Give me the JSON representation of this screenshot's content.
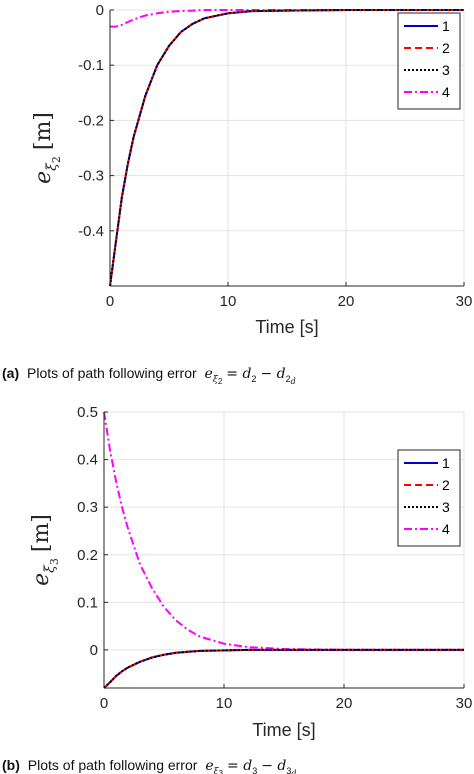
{
  "chart_data": [
    {
      "type": "line",
      "panel": "(a)",
      "caption_prefix": "Plots of path following error",
      "caption_math": "e_ξ2 = d_2 − d_2d",
      "ylabel": "e_ξ2 [m]",
      "xlabel": "Time [s]",
      "xlim": [
        0,
        30
      ],
      "ylim": [
        -0.5,
        0
      ],
      "xticks": [
        "0",
        "10",
        "20",
        "30"
      ],
      "yticks": [
        "0",
        "-0.1",
        "-0.2",
        "-0.3",
        "-0.4"
      ],
      "ytick_values": [
        0,
        -0.1,
        -0.2,
        -0.3,
        -0.4
      ],
      "grid": true,
      "legend_position": "top-right",
      "x": [
        0,
        0.5,
        1,
        1.5,
        2,
        3,
        4,
        5,
        6,
        7,
        8,
        10,
        12,
        15,
        20,
        25,
        30
      ],
      "series": [
        {
          "name": "1",
          "color": "#0000cc",
          "style": "solid",
          "values": [
            -0.5,
            -0.42,
            -0.34,
            -0.28,
            -0.23,
            -0.155,
            -0.1,
            -0.065,
            -0.04,
            -0.025,
            -0.015,
            -0.006,
            -0.002,
            -0.001,
            0,
            0,
            0
          ]
        },
        {
          "name": "2",
          "color": "#ff0000",
          "style": "dashed",
          "values": [
            -0.5,
            -0.42,
            -0.34,
            -0.28,
            -0.23,
            -0.155,
            -0.1,
            -0.065,
            -0.04,
            -0.025,
            -0.015,
            -0.006,
            -0.002,
            -0.001,
            0,
            0,
            0
          ]
        },
        {
          "name": "3",
          "color": "#000000",
          "style": "dotted",
          "values": [
            -0.5,
            -0.42,
            -0.34,
            -0.28,
            -0.23,
            -0.155,
            -0.1,
            -0.065,
            -0.04,
            -0.025,
            -0.015,
            -0.006,
            -0.002,
            -0.001,
            0,
            0,
            0
          ]
        },
        {
          "name": "4",
          "color": "#ff00ff",
          "style": "dashdot",
          "values": [
            -0.03,
            -0.03,
            -0.027,
            -0.022,
            -0.017,
            -0.01,
            -0.006,
            -0.003,
            -0.002,
            -0.001,
            0,
            0,
            0,
            0,
            0,
            0,
            0
          ]
        }
      ]
    },
    {
      "type": "line",
      "panel": "(b)",
      "caption_prefix": "Plots of path following error",
      "caption_math": "e_ξ3 = d_3 − d_3d",
      "ylabel": "e_ξ3 [m]",
      "xlabel": "Time [s]",
      "xlim": [
        0,
        30
      ],
      "ylim": [
        -0.08,
        0.5
      ],
      "xticks": [
        "0",
        "10",
        "20",
        "30"
      ],
      "yticks": [
        "0.5",
        "0.4",
        "0.3",
        "0.2",
        "0.1",
        "0"
      ],
      "ytick_values": [
        0.5,
        0.4,
        0.3,
        0.2,
        0.1,
        0
      ],
      "grid": true,
      "legend_position": "top-right",
      "x": [
        0,
        0.5,
        1,
        1.5,
        2,
        3,
        4,
        5,
        6,
        7,
        8,
        10,
        12,
        15,
        20,
        25,
        30
      ],
      "series": [
        {
          "name": "1",
          "color": "#0000cc",
          "style": "solid",
          "values": [
            -0.08,
            -0.068,
            -0.055,
            -0.045,
            -0.037,
            -0.025,
            -0.016,
            -0.01,
            -0.006,
            -0.004,
            -0.002,
            -0.001,
            0,
            0,
            0,
            0,
            0
          ]
        },
        {
          "name": "2",
          "color": "#ff0000",
          "style": "dashed",
          "values": [
            -0.08,
            -0.068,
            -0.055,
            -0.045,
            -0.037,
            -0.025,
            -0.016,
            -0.01,
            -0.006,
            -0.004,
            -0.002,
            -0.001,
            0,
            0,
            0,
            0,
            0
          ]
        },
        {
          "name": "3",
          "color": "#000000",
          "style": "dotted",
          "values": [
            -0.08,
            -0.068,
            -0.055,
            -0.045,
            -0.037,
            -0.025,
            -0.016,
            -0.01,
            -0.006,
            -0.004,
            -0.002,
            -0.001,
            0,
            0,
            0,
            0,
            0
          ]
        },
        {
          "name": "4",
          "color": "#ff00ff",
          "style": "dashdot",
          "values": [
            0.5,
            0.42,
            0.355,
            0.3,
            0.255,
            0.18,
            0.13,
            0.09,
            0.062,
            0.042,
            0.028,
            0.013,
            0.006,
            0.002,
            0,
            0,
            0
          ]
        }
      ]
    }
  ]
}
